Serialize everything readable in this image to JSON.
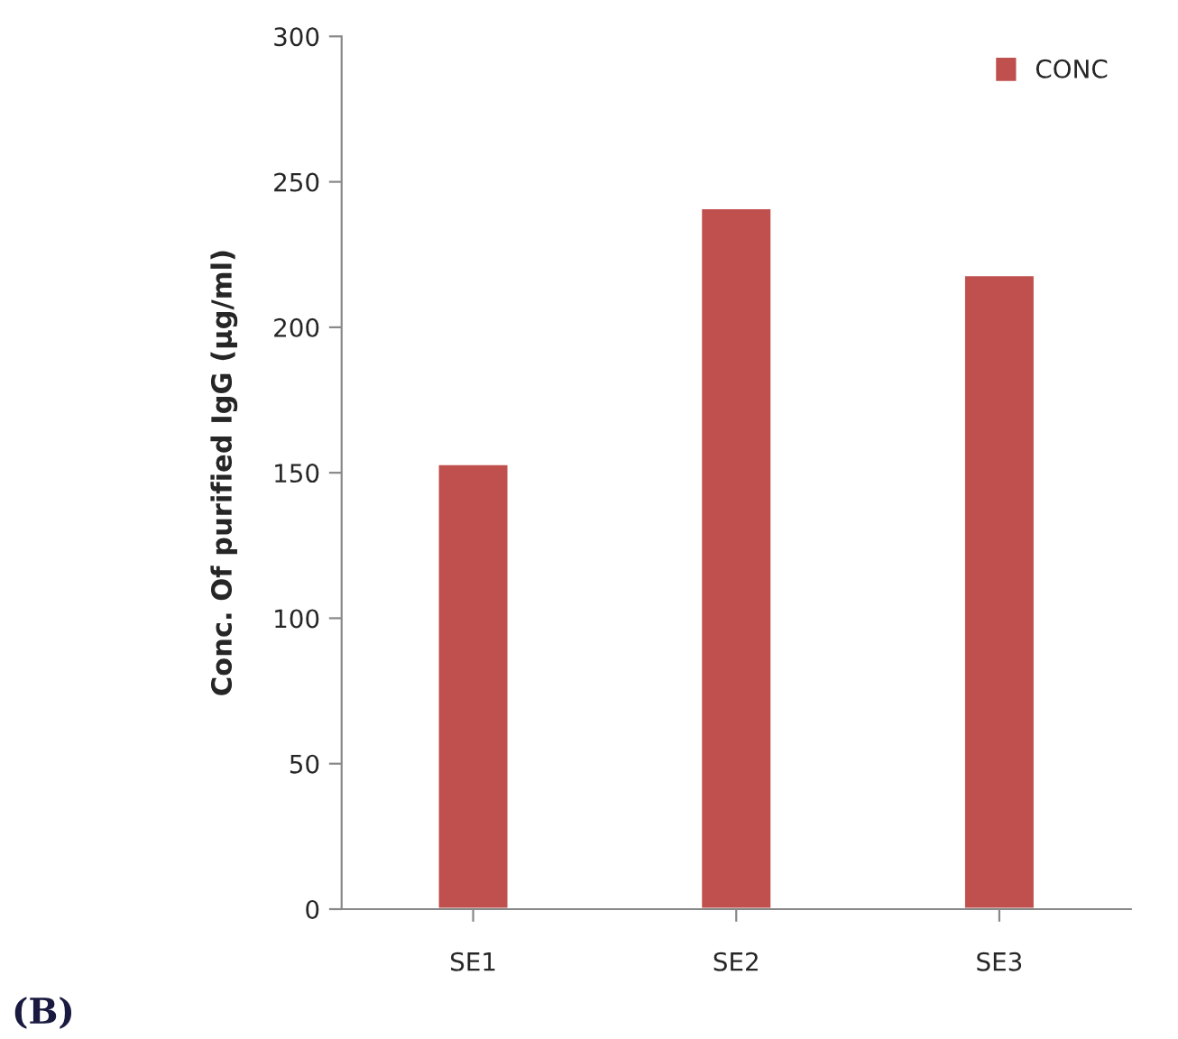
{
  "chart_data": {
    "type": "bar",
    "ylabel": "Conc. Of purified IgG (µg/ml)",
    "categories": [
      "SE1",
      "SE2",
      "SE3"
    ],
    "series": [
      {
        "name": "CONC",
        "color": "#c0504d",
        "values": [
          153,
          241,
          218
        ]
      }
    ],
    "ylim": [
      0,
      300
    ],
    "yticks": [
      0,
      50,
      100,
      150,
      200,
      250,
      300
    ],
    "grid": false,
    "legend": "top right",
    "annotations": [
      "(B)"
    ]
  }
}
